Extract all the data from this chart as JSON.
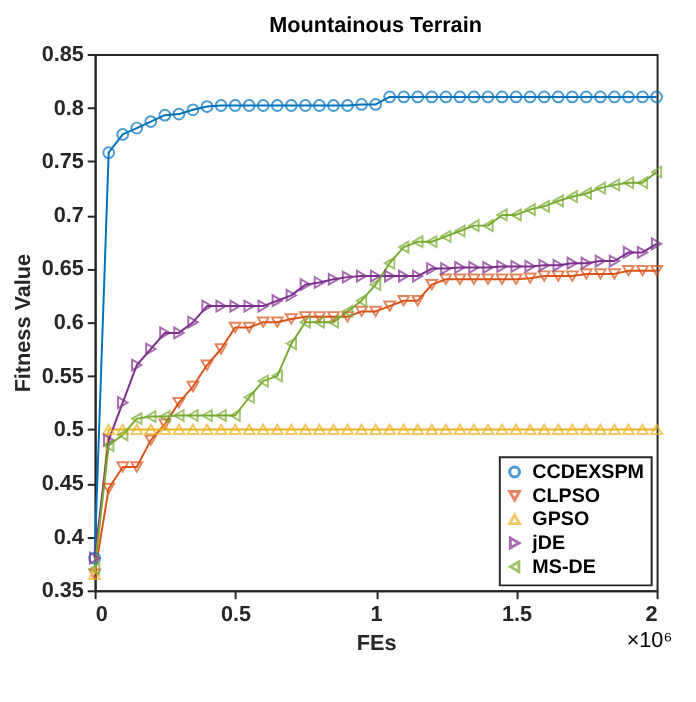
{
  "chart_data": {
    "type": "line",
    "title": "Mountainous Terrain",
    "xlabel": "FEs",
    "ylabel": "Fitness Value",
    "x": [
      0,
      0.05,
      0.1,
      0.15,
      0.2,
      0.25,
      0.3,
      0.35,
      0.4,
      0.45,
      0.5,
      0.55,
      0.6,
      0.65,
      0.7,
      0.75,
      0.8,
      0.85,
      0.9,
      0.95,
      1.0,
      1.05,
      1.1,
      1.15,
      1.2,
      1.25,
      1.3,
      1.35,
      1.4,
      1.45,
      1.5,
      1.55,
      1.6,
      1.65,
      1.7,
      1.75,
      1.8,
      1.85,
      1.9,
      1.95,
      2.0
    ],
    "series": [
      {
        "name": "CCDEXSPM",
        "color": "#0072bd",
        "marker": "circle",
        "values": [
          0.38,
          0.758,
          0.775,
          0.781,
          0.787,
          0.793,
          0.794,
          0.798,
          0.801,
          0.802,
          0.802,
          0.802,
          0.802,
          0.802,
          0.802,
          0.802,
          0.802,
          0.802,
          0.802,
          0.803,
          0.803,
          0.81,
          0.81,
          0.81,
          0.81,
          0.81,
          0.81,
          0.81,
          0.81,
          0.81,
          0.81,
          0.81,
          0.81,
          0.81,
          0.81,
          0.81,
          0.81,
          0.81,
          0.81,
          0.81,
          0.81
        ]
      },
      {
        "name": "CLPSO",
        "color": "#d95319",
        "marker": "triangle-down",
        "values": [
          0.365,
          0.445,
          0.465,
          0.465,
          0.49,
          0.505,
          0.525,
          0.54,
          0.56,
          0.575,
          0.595,
          0.595,
          0.6,
          0.6,
          0.603,
          0.605,
          0.605,
          0.605,
          0.605,
          0.61,
          0.61,
          0.615,
          0.62,
          0.62,
          0.635,
          0.64,
          0.64,
          0.64,
          0.64,
          0.64,
          0.64,
          0.641,
          0.643,
          0.643,
          0.643,
          0.645,
          0.645,
          0.645,
          0.648,
          0.648,
          0.648
        ]
      },
      {
        "name": "GPSO",
        "color": "#edb120",
        "marker": "triangle-up",
        "values": [
          0.365,
          0.5,
          0.5,
          0.5,
          0.5,
          0.5,
          0.5,
          0.5,
          0.5,
          0.5,
          0.5,
          0.5,
          0.5,
          0.5,
          0.5,
          0.5,
          0.5,
          0.5,
          0.5,
          0.5,
          0.5,
          0.5,
          0.5,
          0.5,
          0.5,
          0.5,
          0.5,
          0.5,
          0.5,
          0.5,
          0.5,
          0.5,
          0.5,
          0.5,
          0.5,
          0.5,
          0.5,
          0.5,
          0.5,
          0.5,
          0.5
        ]
      },
      {
        "name": "jDE",
        "color": "#7e2f8e",
        "marker": "triangle-right",
        "values": [
          0.38,
          0.49,
          0.525,
          0.56,
          0.575,
          0.59,
          0.59,
          0.6,
          0.615,
          0.615,
          0.615,
          0.615,
          0.615,
          0.62,
          0.625,
          0.635,
          0.637,
          0.64,
          0.642,
          0.643,
          0.643,
          0.643,
          0.643,
          0.643,
          0.65,
          0.65,
          0.651,
          0.651,
          0.651,
          0.652,
          0.652,
          0.652,
          0.653,
          0.653,
          0.655,
          0.655,
          0.657,
          0.657,
          0.665,
          0.665,
          0.673
        ]
      },
      {
        "name": "MS-DE",
        "color": "#77ac30",
        "marker": "triangle-left",
        "values": [
          0.37,
          0.485,
          0.495,
          0.51,
          0.512,
          0.512,
          0.513,
          0.513,
          0.513,
          0.513,
          0.513,
          0.53,
          0.545,
          0.55,
          0.58,
          0.6,
          0.6,
          0.6,
          0.61,
          0.62,
          0.635,
          0.655,
          0.67,
          0.675,
          0.675,
          0.68,
          0.685,
          0.69,
          0.69,
          0.7,
          0.7,
          0.705,
          0.708,
          0.713,
          0.717,
          0.72,
          0.725,
          0.728,
          0.73,
          0.73,
          0.74
        ]
      }
    ],
    "xlim": [
      0,
      2
    ],
    "xticks": [
      0,
      0.5,
      1,
      1.5,
      2
    ],
    "ylim": [
      0.35,
      0.85
    ],
    "yticks": [
      0.35,
      0.4,
      0.45,
      0.5,
      0.55,
      0.6,
      0.65,
      0.7,
      0.75,
      0.8,
      0.85
    ],
    "annotations": [
      "×10⁶"
    ],
    "grid": false,
    "legend": "bottom right",
    "line_style": "solid"
  }
}
